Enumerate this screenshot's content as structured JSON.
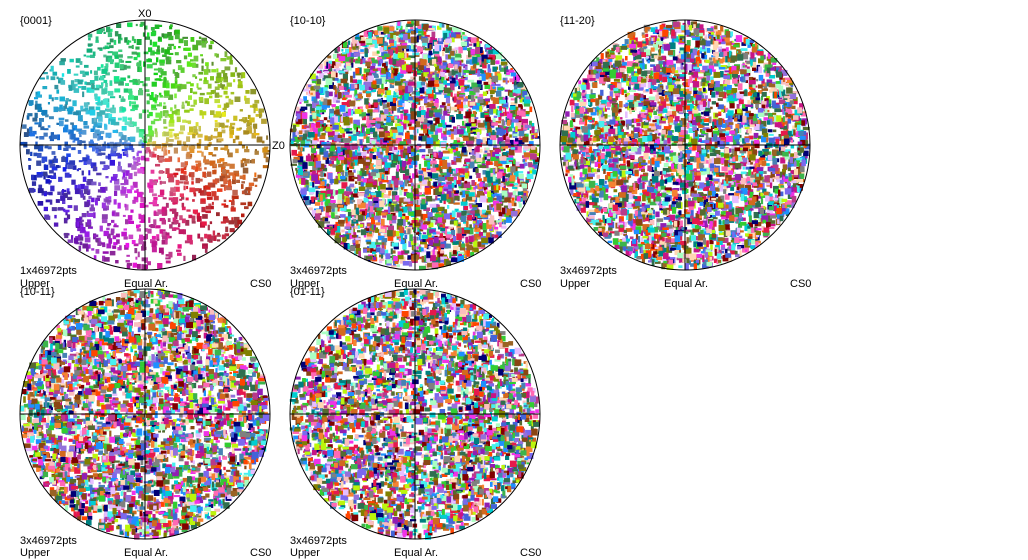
{
  "axis_labels": {
    "x": "X0",
    "z": "Z0"
  },
  "plots": [
    {
      "plane": "{0001}",
      "points": "1x46972pts",
      "hemisphere": "Upper",
      "projection": "Equal Ar.",
      "crystal_system": "CS0",
      "pattern": "basal"
    },
    {
      "plane": "{10-10}",
      "points": "3x46972pts",
      "hemisphere": "Upper",
      "projection": "Equal Ar.",
      "crystal_system": "CS0",
      "pattern": "dense"
    },
    {
      "plane": "{11-20}",
      "points": "3x46972pts",
      "hemisphere": "Upper",
      "projection": "Equal Ar.",
      "crystal_system": "CS0",
      "pattern": "dense"
    },
    {
      "plane": "{10-11}",
      "points": "3x46972pts",
      "hemisphere": "Upper",
      "projection": "Equal Ar.",
      "crystal_system": "CS0",
      "pattern": "dense"
    },
    {
      "plane": "{01-11}",
      "points": "3x46972pts",
      "hemisphere": "Upper",
      "projection": "Equal Ar.",
      "crystal_system": "CS0",
      "pattern": "dense"
    }
  ]
}
